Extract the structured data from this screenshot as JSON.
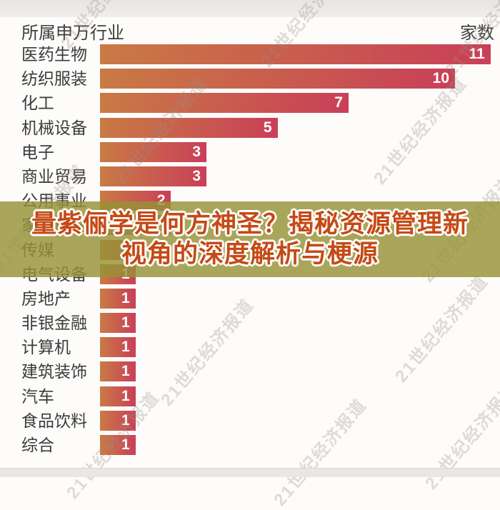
{
  "header": {
    "left_label": "所属申万行业",
    "right_label": "家数"
  },
  "watermark_text": "21世纪经济报道",
  "banner": {
    "line1": "量紫俪学是何方神圣？揭秘资源管理新",
    "line2": "视角的深度解析与梗源",
    "text_color": "#c54a15",
    "bg_color": "rgba(150,146,56,0.82)"
  },
  "chart_data": {
    "type": "bar",
    "orientation": "horizontal",
    "title": "",
    "column_headers": [
      "所属申万行业",
      "家数"
    ],
    "categories": [
      "医药生物",
      "纺织服装",
      "化工",
      "机械设备",
      "电子",
      "商业贸易",
      "公用事业",
      "家用电器",
      "传媒",
      "电气设备",
      "房地产",
      "非银金融",
      "计算机",
      "建筑装饰",
      "汽车",
      "食品饮料",
      "综合"
    ],
    "values": [
      11,
      10,
      7,
      5,
      3,
      3,
      2,
      2,
      1,
      1,
      1,
      1,
      1,
      1,
      1,
      1,
      1
    ],
    "xlabel": "",
    "ylabel": "",
    "xlim": [
      0,
      11.1
    ],
    "grid": false,
    "legend": false,
    "value_labels": "inside-right, white bold",
    "bar_color_left": "#c97a45",
    "bar_color_right": "#c93f58"
  }
}
